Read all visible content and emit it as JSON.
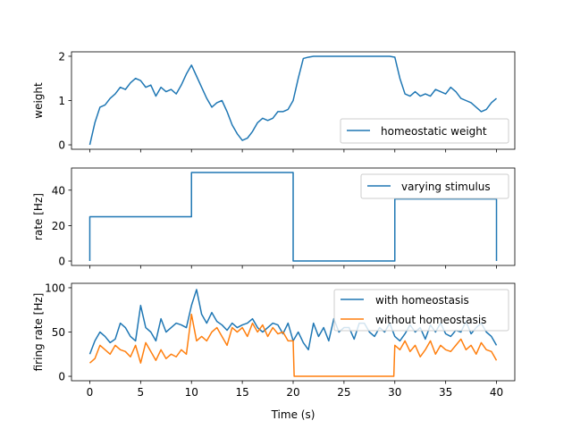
{
  "chart_data": [
    {
      "type": "line",
      "xlabel": "",
      "ylabel": "weight",
      "xlim": [
        -1.8,
        41.8
      ],
      "ylim": [
        -0.1,
        2.1
      ],
      "xticks": [
        0,
        5,
        10,
        15,
        20,
        25,
        30,
        35,
        40
      ],
      "show_xticklabels": false,
      "yticks": [
        0,
        1,
        2
      ],
      "ytick_labels": [
        "0",
        "1",
        "2"
      ],
      "legend_position": "lower-right",
      "grid": false,
      "series": [
        {
          "name": "homeostatic weight",
          "color": "#1f77b4",
          "x": [
            0,
            0.5,
            1,
            1.5,
            2,
            2.5,
            3,
            3.5,
            4,
            4.5,
            5,
            5.5,
            6,
            6.5,
            7,
            7.5,
            8,
            8.5,
            9,
            9.5,
            10,
            10.5,
            11,
            11.5,
            12,
            12.5,
            13,
            13.5,
            14,
            14.5,
            15,
            15.5,
            16,
            16.5,
            17,
            17.5,
            18,
            18.5,
            19,
            19.5,
            20,
            20.5,
            21,
            21.5,
            22,
            22.5,
            23,
            23.5,
            24,
            24.5,
            25,
            25.5,
            26,
            26.5,
            27,
            27.5,
            28,
            28.5,
            29,
            29.5,
            30,
            30.5,
            31,
            31.5,
            32,
            32.5,
            33,
            33.5,
            34,
            34.5,
            35,
            35.5,
            36,
            36.5,
            37,
            37.5,
            38,
            38.5,
            39,
            39.5,
            40
          ],
          "y": [
            0.0,
            0.5,
            0.85,
            0.9,
            1.05,
            1.15,
            1.3,
            1.25,
            1.4,
            1.5,
            1.45,
            1.3,
            1.35,
            1.1,
            1.3,
            1.2,
            1.25,
            1.15,
            1.35,
            1.6,
            1.8,
            1.55,
            1.3,
            1.05,
            0.85,
            0.95,
            1.0,
            0.75,
            0.45,
            0.25,
            0.1,
            0.15,
            0.3,
            0.5,
            0.6,
            0.55,
            0.6,
            0.75,
            0.75,
            0.8,
            1.0,
            1.5,
            1.95,
            1.98,
            2.0,
            2.0,
            2.0,
            2.0,
            2.0,
            2.0,
            2.0,
            2.0,
            2.0,
            2.0,
            2.0,
            2.0,
            2.0,
            2.0,
            2.0,
            2.0,
            1.98,
            1.5,
            1.15,
            1.1,
            1.2,
            1.1,
            1.15,
            1.1,
            1.25,
            1.2,
            1.15,
            1.3,
            1.2,
            1.05,
            1.0,
            0.95,
            0.85,
            0.75,
            0.8,
            0.95,
            1.05
          ]
        }
      ]
    },
    {
      "type": "line",
      "xlabel": "",
      "ylabel": "rate [Hz]",
      "xlim": [
        -1.8,
        41.8
      ],
      "ylim": [
        -2.5,
        52.5
      ],
      "xticks": [
        0,
        5,
        10,
        15,
        20,
        25,
        30,
        35,
        40
      ],
      "show_xticklabels": false,
      "yticks": [
        0,
        20,
        40
      ],
      "ytick_labels": [
        "0",
        "20",
        "40"
      ],
      "legend_position": "upper-right",
      "grid": false,
      "series": [
        {
          "name": "varying stimulus",
          "color": "#1f77b4",
          "x": [
            0,
            0,
            10,
            10,
            20,
            20,
            30,
            30,
            40,
            40
          ],
          "y": [
            0,
            25,
            25,
            50,
            50,
            0,
            0,
            35,
            35,
            0
          ]
        }
      ]
    },
    {
      "type": "line",
      "xlabel": "Time (s)",
      "ylabel": "firing rate [Hz]",
      "xlim": [
        -1.8,
        41.8
      ],
      "ylim": [
        -5,
        105
      ],
      "xticks": [
        0,
        5,
        10,
        15,
        20,
        25,
        30,
        35,
        40
      ],
      "xtick_labels": [
        "0",
        "5",
        "10",
        "15",
        "20",
        "25",
        "30",
        "35",
        "40"
      ],
      "show_xticklabels": true,
      "yticks": [
        0,
        50,
        100
      ],
      "ytick_labels": [
        "0",
        "50",
        "100"
      ],
      "legend_position": "upper-right",
      "grid": false,
      "series": [
        {
          "name": "with homeostasis",
          "color": "#1f77b4",
          "x": [
            0,
            0.5,
            1,
            1.5,
            2,
            2.5,
            3,
            3.5,
            4,
            4.5,
            5,
            5.5,
            6,
            6.5,
            7,
            7.5,
            8,
            8.5,
            9,
            9.5,
            10,
            10.5,
            11,
            11.5,
            12,
            12.5,
            13,
            13.5,
            14,
            14.5,
            15,
            15.5,
            16,
            16.5,
            17,
            17.5,
            18,
            18.5,
            19,
            19.5,
            20,
            20.5,
            21,
            21.5,
            22,
            22.5,
            23,
            23.5,
            24,
            24.5,
            25,
            25.5,
            26,
            26.5,
            27,
            27.5,
            28,
            28.5,
            29,
            29.5,
            30,
            30.5,
            31,
            31.5,
            32,
            32.5,
            33,
            33.5,
            34,
            34.5,
            35,
            35.5,
            36,
            36.5,
            37,
            37.5,
            38,
            38.5,
            39,
            39.5,
            40
          ],
          "y": [
            25,
            40,
            50,
            45,
            38,
            42,
            60,
            55,
            45,
            40,
            80,
            55,
            50,
            40,
            65,
            50,
            55,
            60,
            58,
            55,
            80,
            98,
            70,
            60,
            72,
            62,
            58,
            52,
            60,
            55,
            58,
            60,
            65,
            55,
            50,
            55,
            60,
            58,
            48,
            60,
            40,
            50,
            38,
            30,
            60,
            45,
            55,
            40,
            65,
            50,
            55,
            55,
            42,
            60,
            60,
            50,
            45,
            55,
            50,
            60,
            45,
            40,
            48,
            58,
            50,
            55,
            42,
            58,
            50,
            60,
            48,
            45,
            52,
            50,
            62,
            48,
            55,
            60,
            50,
            45,
            35
          ]
        },
        {
          "name": "without homeostasis",
          "color": "#ff7f0e",
          "x": [
            0,
            0.5,
            1,
            1.5,
            2,
            2.5,
            3,
            3.5,
            4,
            4.5,
            5,
            5.5,
            6,
            6.5,
            7,
            7.5,
            8,
            8.5,
            9,
            9.5,
            10,
            10.5,
            11,
            11.5,
            12,
            12.5,
            13,
            13.5,
            14,
            14.5,
            15,
            15.5,
            16,
            16.5,
            17,
            17.5,
            18,
            18.5,
            19,
            19.5,
            20,
            20.1,
            20.5,
            21,
            22,
            23,
            24,
            25,
            26,
            27,
            28,
            29,
            29.5,
            29.9,
            30,
            30.5,
            31,
            31.5,
            32,
            32.5,
            33,
            33.5,
            34,
            34.5,
            35,
            35.5,
            36,
            36.5,
            37,
            37.5,
            38,
            38.5,
            39,
            39.5,
            40
          ],
          "y": [
            15,
            20,
            35,
            30,
            25,
            35,
            30,
            28,
            22,
            35,
            15,
            38,
            28,
            18,
            30,
            20,
            25,
            22,
            30,
            25,
            70,
            40,
            45,
            40,
            50,
            55,
            45,
            35,
            55,
            50,
            55,
            45,
            60,
            50,
            58,
            45,
            55,
            48,
            50,
            40,
            40,
            0,
            0,
            0,
            0,
            0,
            0,
            0,
            0,
            0,
            0,
            0,
            0,
            0,
            35,
            30,
            40,
            28,
            35,
            22,
            30,
            40,
            25,
            35,
            30,
            28,
            35,
            42,
            30,
            35,
            25,
            38,
            30,
            28,
            18
          ]
        }
      ]
    }
  ]
}
